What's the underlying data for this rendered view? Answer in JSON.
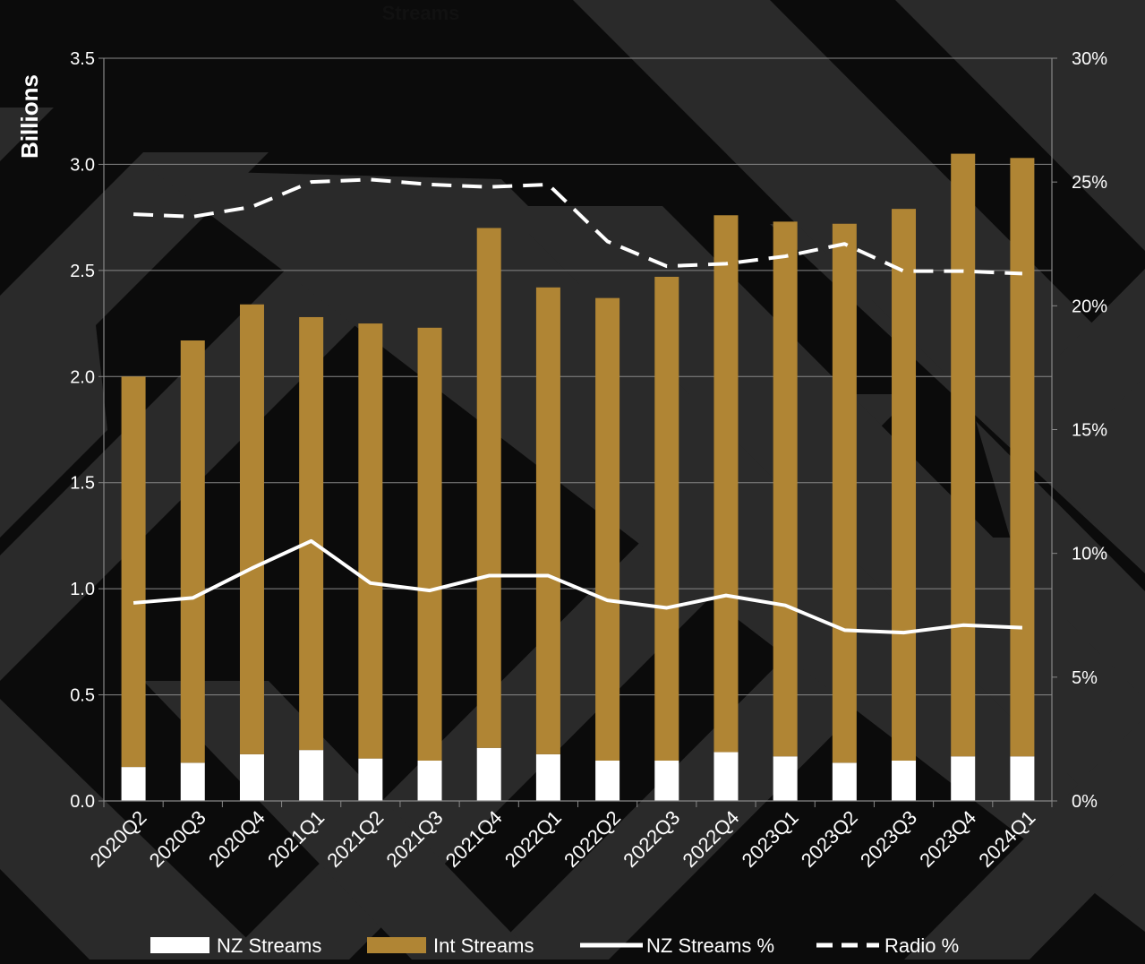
{
  "chart_data": {
    "type": "bar",
    "title": "Streams",
    "ylabel": "Billions",
    "y2label": "",
    "ylim": [
      0,
      3.5
    ],
    "y2lim": [
      0,
      30
    ],
    "yticks": [
      "0.0",
      "0.5",
      "1.0",
      "1.5",
      "2.0",
      "2.5",
      "3.0",
      "3.5"
    ],
    "y2ticks": [
      "0%",
      "5%",
      "10%",
      "15%",
      "20%",
      "25%",
      "30%"
    ],
    "stacked": true,
    "grid": true,
    "legend_position": "bottom",
    "categories": [
      "2020Q2",
      "2020Q3",
      "2020Q4",
      "2021Q1",
      "2021Q2",
      "2021Q3",
      "2021Q4",
      "2022Q1",
      "2022Q2",
      "2022Q3",
      "2022Q4",
      "2023Q1",
      "2023Q2",
      "2023Q3",
      "2023Q4",
      "2024Q1"
    ],
    "series": [
      {
        "name": "NZ Streams",
        "type": "bar",
        "axis": "left",
        "color": "#ffffff",
        "values": [
          0.16,
          0.18,
          0.22,
          0.24,
          0.2,
          0.19,
          0.25,
          0.22,
          0.19,
          0.19,
          0.23,
          0.21,
          0.18,
          0.19,
          0.21,
          0.21
        ]
      },
      {
        "name": "Int Streams",
        "type": "bar",
        "axis": "left",
        "color": "#b08534",
        "values": [
          1.84,
          1.99,
          2.12,
          2.04,
          2.05,
          2.04,
          2.45,
          2.2,
          2.18,
          2.28,
          2.53,
          2.52,
          2.54,
          2.6,
          2.84,
          2.82
        ]
      },
      {
        "name": "NZ Streams %",
        "type": "line",
        "axis": "right",
        "color": "#ffffff",
        "dash": "solid",
        "values": [
          8.0,
          8.2,
          9.4,
          10.5,
          8.8,
          8.5,
          9.1,
          9.1,
          8.1,
          7.8,
          8.3,
          7.9,
          6.9,
          6.8,
          7.1,
          7.0
        ]
      },
      {
        "name": "Radio %",
        "type": "line",
        "axis": "right",
        "color": "#ffffff",
        "dash": "dashed",
        "values": [
          23.7,
          23.6,
          24.0,
          25.0,
          25.1,
          24.9,
          24.8,
          24.9,
          22.6,
          21.6,
          21.7,
          22.0,
          22.5,
          21.4,
          21.4,
          21.3
        ]
      }
    ]
  },
  "theme": {
    "background": "#0b0b0b",
    "stripe": "#2a2a2a",
    "grid": "#888888",
    "text": "#ffffff",
    "title_color": "#111111"
  }
}
